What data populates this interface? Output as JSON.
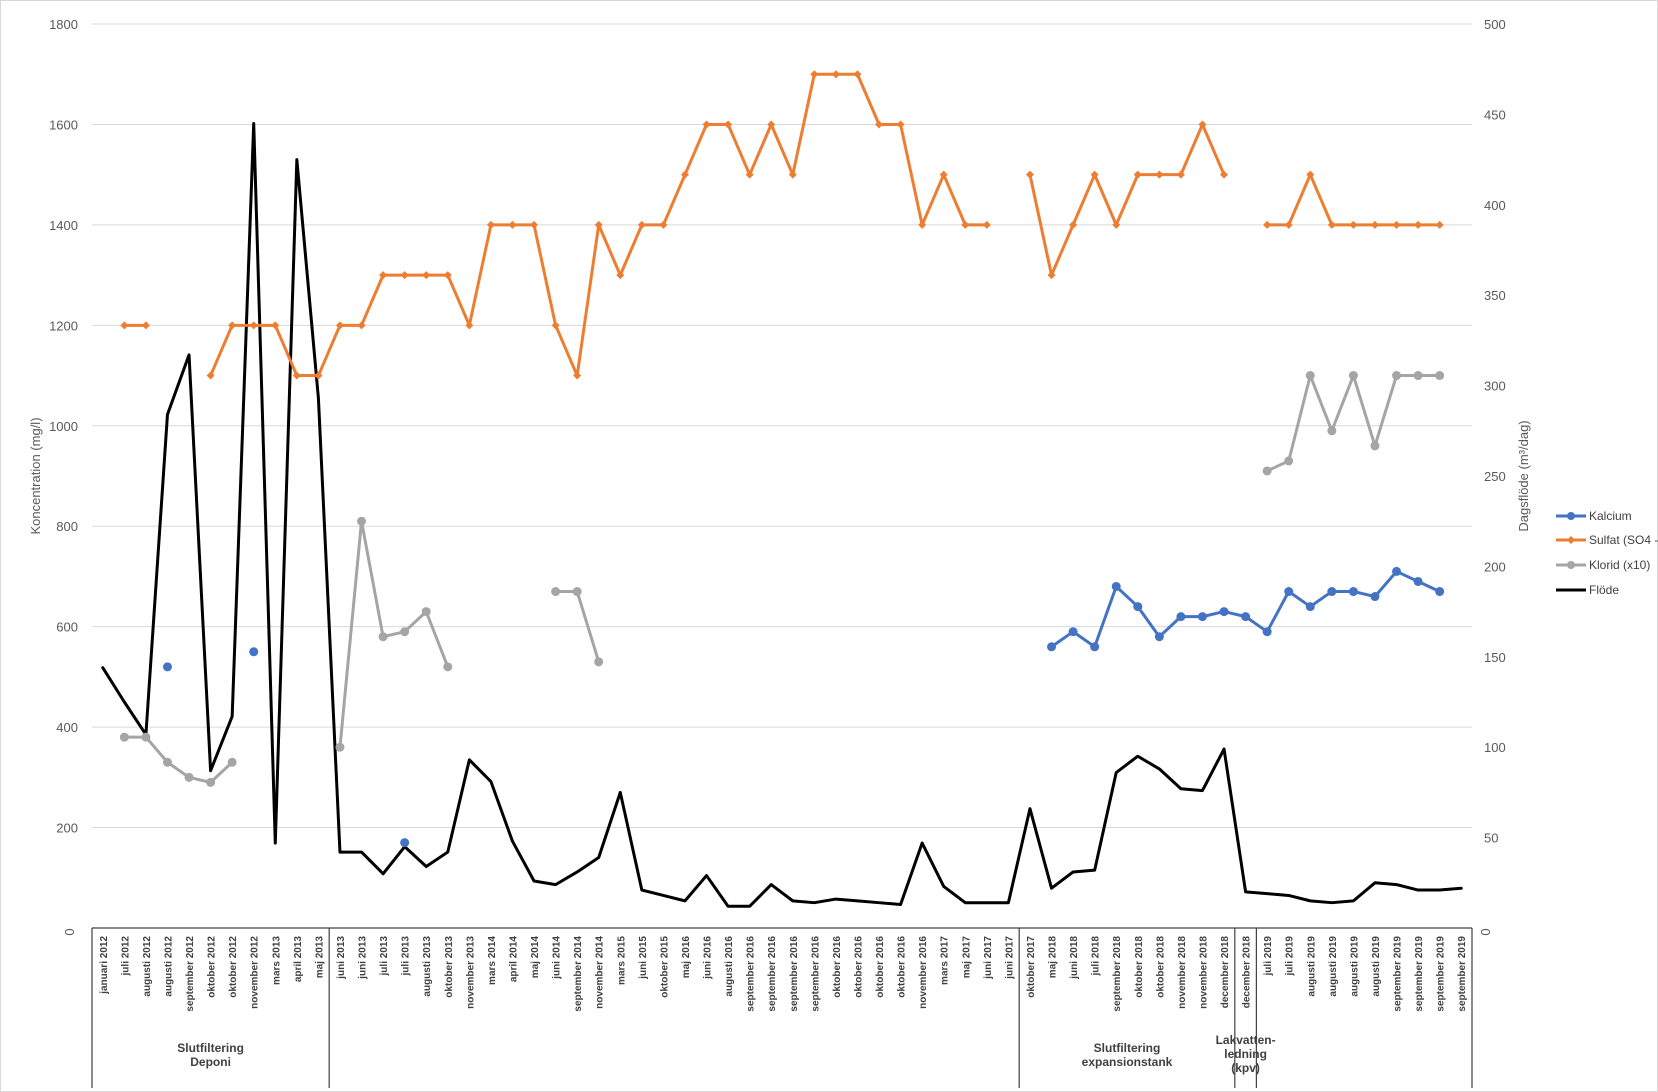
{
  "chart_data": {
    "type": "line",
    "ylabel": "Koncentration (mg/l)",
    "y2label": "Dagsflöde (m³/dag)",
    "ylim": [
      0,
      1800
    ],
    "y2lim": [
      0,
      500
    ],
    "yticks": [
      200,
      400,
      600,
      800,
      1000,
      1200,
      1400,
      1600,
      1800
    ],
    "y2ticks": [
      50,
      100,
      150,
      200,
      250,
      300,
      350,
      400,
      450,
      500
    ],
    "zero_labels": [
      "0",
      "0"
    ],
    "legend_position": "right",
    "grid": true,
    "categories": [
      "januari 2012",
      "juli 2012",
      "augusti 2012",
      "augusti 2012",
      "september 2012",
      "oktober 2012",
      "oktober 2012",
      "november 2012",
      "mars 2013",
      "april 2013",
      "maj 2013",
      "juni 2013",
      "juni 2013",
      "juli 2013",
      "juli 2013",
      "augusti 2013",
      "oktober 2013",
      "november 2013",
      "mars 2014",
      "april 2014",
      "maj 2014",
      "juni 2014",
      "september 2014",
      "november 2014",
      "mars 2015",
      "juni 2015",
      "oktober 2015",
      "maj 2016",
      "juni 2016",
      "augusti 2016",
      "september 2016",
      "september 2016",
      "september 2016",
      "september 2016",
      "oktober 2016",
      "oktober 2016",
      "oktober 2016",
      "oktober 2016",
      "november 2016",
      "mars 2017",
      "maj 2017",
      "juni 2017",
      "juni 2017",
      "oktober 2017",
      "maj 2018",
      "juni 2018",
      "juli 2018",
      "september 2018",
      "oktober 2018",
      "oktober 2018",
      "november 2018",
      "november 2018",
      "december 2018",
      "december 2018",
      "juli 2019",
      "juli 2019",
      "augusti 2019",
      "augusti 2019",
      "augusti 2019",
      "augusti 2019",
      "september 2019",
      "september 2019",
      "september 2019",
      "september 2019"
    ],
    "groups": [
      {
        "label": "Slutfiltering\nDeponi"
      },
      {
        "label": ""
      },
      {
        "label": "Slutfiltering\nexpansionstank"
      },
      {
        "label": "Lakvatten-\nledning\n(kpv)"
      },
      {
        "label": ""
      }
    ],
    "series": [
      {
        "name": "Kalcium",
        "axis": "left",
        "color": "#4472C4",
        "marker": "circle",
        "values": [
          null,
          null,
          null,
          520,
          null,
          null,
          null,
          550,
          null,
          null,
          null,
          null,
          null,
          null,
          170,
          null,
          null,
          null,
          null,
          null,
          null,
          null,
          null,
          null,
          null,
          null,
          null,
          null,
          null,
          null,
          null,
          null,
          null,
          null,
          null,
          null,
          null,
          null,
          null,
          null,
          null,
          null,
          null,
          null,
          560,
          590,
          560,
          680,
          640,
          580,
          620,
          620,
          630,
          620,
          590,
          670,
          640,
          670,
          670,
          660,
          710,
          690,
          670,
          null
        ]
      },
      {
        "name": "Sulfat (SO4 -",
        "axis": "left",
        "color": "#ED7D31",
        "marker": "diamond",
        "values": [
          null,
          1200,
          1200,
          null,
          null,
          1100,
          1200,
          1200,
          1200,
          1100,
          1100,
          1200,
          1200,
          1300,
          1300,
          1300,
          1300,
          1200,
          1400,
          1400,
          1400,
          1200,
          1100,
          1400,
          1300,
          1400,
          1400,
          1500,
          1600,
          1600,
          1500,
          1600,
          1500,
          1700,
          1700,
          1700,
          1600,
          1600,
          1400,
          1500,
          1400,
          1400,
          null,
          1500,
          1300,
          1400,
          1500,
          1400,
          1500,
          1500,
          1500,
          1600,
          1500,
          null,
          1400,
          1400,
          1500,
          1400,
          1400,
          1400,
          1400,
          1400,
          1400,
          null
        ]
      },
      {
        "name": "Klorid (x10)",
        "axis": "left",
        "color": "#A5A5A5",
        "marker": "circle",
        "values": [
          null,
          380,
          380,
          330,
          300,
          290,
          330,
          null,
          null,
          null,
          null,
          360,
          810,
          580,
          590,
          630,
          520,
          null,
          null,
          null,
          null,
          670,
          670,
          530,
          null,
          null,
          null,
          null,
          null,
          null,
          null,
          null,
          null,
          null,
          null,
          null,
          null,
          null,
          null,
          null,
          null,
          null,
          null,
          null,
          null,
          null,
          null,
          null,
          null,
          null,
          null,
          null,
          null,
          null,
          910,
          930,
          1100,
          990,
          1100,
          960,
          1100,
          1100,
          1100,
          null
        ]
      },
      {
        "name": "Flöde",
        "axis": "right",
        "color": "#000000",
        "marker": "none",
        "values": [
          144,
          125,
          107,
          284,
          317,
          87,
          117,
          445,
          47,
          425,
          293,
          42,
          42,
          30,
          45,
          34,
          42,
          93,
          81,
          48,
          26,
          24,
          31,
          39,
          75,
          21,
          18,
          15,
          29,
          12,
          12,
          24,
          15,
          14,
          16,
          15,
          14,
          13,
          47,
          23,
          14,
          14,
          14,
          66,
          22,
          31,
          32,
          86,
          95,
          88,
          77,
          76,
          99,
          20,
          19,
          18,
          15,
          14,
          15,
          25,
          24,
          21,
          21,
          22
        ]
      }
    ]
  }
}
